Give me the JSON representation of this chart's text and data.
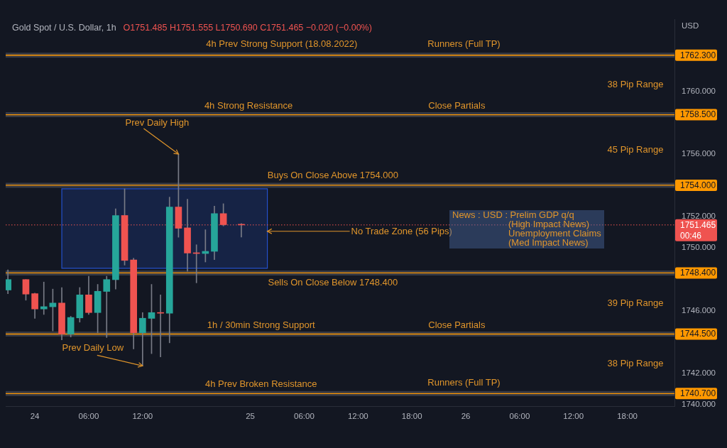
{
  "chart_data": {
    "type": "candlestick",
    "title": "Gold Spot / U.S. Dollar, 1h",
    "subtitle": "O1751.485 H1751.555 L1750.690 C1751.465 −0.020 (−0.00%)",
    "ylabel": "USD",
    "x": [
      "2022-08-23T21:00",
      "2022-08-23T23:00",
      "2022-08-24T00:00",
      "2022-08-24T01:00",
      "2022-08-24T02:00",
      "2022-08-24T03:00",
      "2022-08-24T04:00",
      "2022-08-24T05:00",
      "2022-08-24T06:00",
      "2022-08-24T07:00",
      "2022-08-24T08:00",
      "2022-08-24T09:00",
      "2022-08-24T10:00",
      "2022-08-24T11:00",
      "2022-08-24T12:00",
      "2022-08-24T13:00",
      "2022-08-24T14:00",
      "2022-08-24T15:00",
      "2022-08-24T16:00",
      "2022-08-24T17:00",
      "2022-08-24T18:00",
      "2022-08-24T19:00",
      "2022-08-24T20:00",
      "2022-08-24T21:00",
      "2022-08-24T23:00"
    ],
    "ohlc": [
      [
        1747.31,
        1748.6,
        1747.08,
        1747.98
      ],
      [
        1747.98,
        1747.98,
        1746.66,
        1747.05
      ],
      [
        1747.08,
        1747.11,
        1745.5,
        1746.1
      ],
      [
        1746.1,
        1747.82,
        1745.75,
        1746.25
      ],
      [
        1746.24,
        1747.37,
        1744.7,
        1746.48
      ],
      [
        1746.48,
        1747.47,
        1744.13,
        1744.5
      ],
      [
        1744.5,
        1745.63,
        1744.31,
        1745.56
      ],
      [
        1745.53,
        1747.47,
        1745.26,
        1747.0
      ],
      [
        1747.0,
        1748.19,
        1745.75,
        1745.87
      ],
      [
        1745.87,
        1747.67,
        1744.58,
        1747.23
      ],
      [
        1747.22,
        1748.19,
        1744.28,
        1747.98
      ],
      [
        1747.97,
        1752.49,
        1747.37,
        1752.07
      ],
      [
        1752.07,
        1753.77,
        1748.9,
        1749.2
      ],
      [
        1749.23,
        1749.34,
        1743.55,
        1744.58
      ],
      [
        1744.58,
        1745.87,
        1742.47,
        1745.51
      ],
      [
        1745.5,
        1747.67,
        1743.25,
        1745.87
      ],
      [
        1745.87,
        1747.0,
        1743.04,
        1745.83
      ],
      [
        1745.83,
        1753.24,
        1743.94,
        1752.61
      ],
      [
        1752.61,
        1755.99,
        1750.68,
        1751.25
      ],
      [
        1751.28,
        1753.11,
        1748.5,
        1749.67
      ],
      [
        1749.69,
        1750.2,
        1747.77,
        1749.64
      ],
      [
        1749.64,
        1751.16,
        1749.1,
        1749.78
      ],
      [
        1749.78,
        1752.67,
        1749.25,
        1752.19
      ],
      [
        1752.19,
        1752.82,
        1751.4,
        1751.48
      ],
      [
        1751.485,
        1751.555,
        1750.69,
        1751.465
      ]
    ],
    "colors": [
      "#26a69a",
      "#ef5350",
      "#ef5350",
      "#26a69a",
      "#26a69a",
      "#ef5350",
      "#26a69a",
      "#26a69a",
      "#ef5350",
      "#26a69a",
      "#26a69a",
      "#26a69a",
      "#ef5350",
      "#ef5350",
      "#26a69a",
      "#26a69a",
      "#ef5350",
      "#26a69a",
      "#ef5350",
      "#ef5350",
      "#ef5350",
      "#26a69a",
      "#26a69a",
      "#ef5350",
      "#ef5350"
    ],
    "series": [
      {
        "type": "line",
        "x": [
          "2022-08-24T03:00",
          "2022-08-25T01:54"
        ],
        "values": [
          null,
          null
        ],
        "lower": [
          1748.7,
          1748.7
        ],
        "upper": [
          1753.77,
          1753.77
        ],
        "color": "#2962ff"
      }
    ],
    "xlim": [
      "2022-08-23T20:45",
      "2022-08-26T23:15"
    ],
    "xticks": [
      {
        "value": "2022-08-24T00:00",
        "label": "24"
      },
      {
        "value": "2022-08-24T06:00",
        "label": "06:00"
      },
      {
        "value": "2022-08-24T12:00",
        "label": "12:00"
      },
      {
        "value": "2022-08-25T00:00",
        "label": "25"
      },
      {
        "value": "2022-08-25T06:00",
        "label": "06:00"
      },
      {
        "value": "2022-08-25T12:00",
        "label": "12:00"
      },
      {
        "value": "2022-08-25T18:00",
        "label": "18:00"
      },
      {
        "value": "2022-08-26T00:00",
        "label": "26"
      },
      {
        "value": "2022-08-26T06:00",
        "label": "06:00"
      },
      {
        "value": "2022-08-26T12:00",
        "label": "12:00"
      },
      {
        "value": "2022-08-26T18:00",
        "label": "18:00"
      }
    ],
    "ylim": [
      1739.9,
      1764.6
    ],
    "yticks": [
      {
        "value": 1740,
        "label": "1740.000"
      },
      {
        "value": 1742,
        "label": "1742.000"
      },
      {
        "value": 1746,
        "label": "1746.000"
      },
      {
        "value": 1750,
        "label": "1750.000"
      },
      {
        "value": 1752,
        "label": "1752.000"
      },
      {
        "value": 1756,
        "label": "1756.000"
      },
      {
        "value": 1760,
        "label": "1760.000"
      }
    ],
    "ref_lines": [
      {
        "axis": "y",
        "value": 1762.3,
        "label": "1762.300",
        "color": "#ff9800"
      },
      {
        "axis": "y",
        "value": 1758.5,
        "label": "1758.500",
        "color": "#ff9800"
      },
      {
        "axis": "y",
        "value": 1754,
        "label": "1754.000",
        "color": "#ff9800"
      },
      {
        "axis": "y",
        "value": 1748.4,
        "label": "1748.400",
        "color": "#ff9800"
      },
      {
        "axis": "y",
        "value": 1744.5,
        "label": "1744.500",
        "color": "#ff9800"
      },
      {
        "axis": "y",
        "value": 1740.7,
        "label": "1740.700",
        "color": "#ff9800"
      },
      {
        "axis": "y",
        "value": 1751.465,
        "label": "1751.465\n00:46",
        "color": "#ef5350",
        "line_style": "dotted"
      }
    ],
    "annotations": [
      {
        "text": "4h Prev Strong Support (18.08.2022)",
        "x": "2022-08-25T03:30",
        "y": 1762.3
      },
      {
        "text": "Runners (Full TP)",
        "x": "2022-08-25T23:48",
        "y": 1762.3
      },
      "38 Pip Range",
      {
        "text": "4h Strong Resistance",
        "x": "2022-08-24T23:48",
        "y": 1758.5
      },
      {
        "text": "Close Partials",
        "x": "2022-08-25T23:00",
        "y": 1758.5
      },
      "45 Pip Range",
      {
        "text": "Buys On Close Above 1754.000",
        "x": "2022-08-25T09:12",
        "y": 1754
      },
      {
        "text": "Sells On Close Below 1748.400",
        "x": "2022-08-25T09:12",
        "y": 1748.4
      },
      "39 Pip Range",
      {
        "text": "1h / 30min Strong Support",
        "x": "2022-08-25T01:12",
        "y": 1744.5
      },
      {
        "text": "Close Partials",
        "x": "2022-08-25T23:00",
        "y": 1744.5
      },
      "38 Pip Range",
      {
        "text": "4h Prev Broken Resistance",
        "x": "2022-08-25T01:12",
        "y": 1740.7
      },
      {
        "text": "Runners (Full TP)",
        "x": "2022-08-25T23:48",
        "y": 1740.7
      },
      {
        "text": "Prev Daily High",
        "x": "2022-08-24T16:00",
        "y": 1755.99
      },
      {
        "text": "Prev Daily Low",
        "x": "2022-08-24T12:00",
        "y": 1742.47
      },
      {
        "text": "No Trade Zone (56 Pips)",
        "x": "2022-08-25T01:54",
        "y": 1751.06
      },
      "News : USD : Prelim GDP q/q\n(High Impact News)\nUnemployment Claims\n(Med Impact News)"
    ]
  }
}
